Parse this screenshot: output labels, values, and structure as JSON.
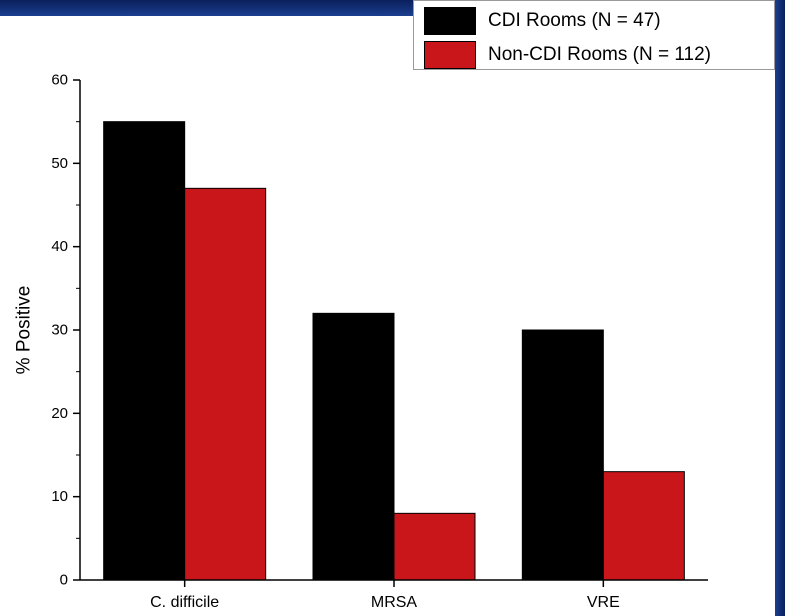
{
  "chart_data": {
    "type": "bar",
    "categories": [
      "C. difficile",
      "MRSA",
      "VRE"
    ],
    "series": [
      {
        "name": "CDI Rooms (N = 47)",
        "values": [
          55,
          32,
          30
        ],
        "color": "#000000"
      },
      {
        "name": "Non-CDI Rooms (N = 112)",
        "values": [
          47,
          8,
          13
        ],
        "color": "#c8161b"
      }
    ],
    "ylabel": "% Positive",
    "ylim": [
      0,
      60
    ],
    "yticks": [
      0,
      10,
      20,
      30,
      40,
      50,
      60
    ],
    "grid": false,
    "legend_position": "top-right"
  }
}
